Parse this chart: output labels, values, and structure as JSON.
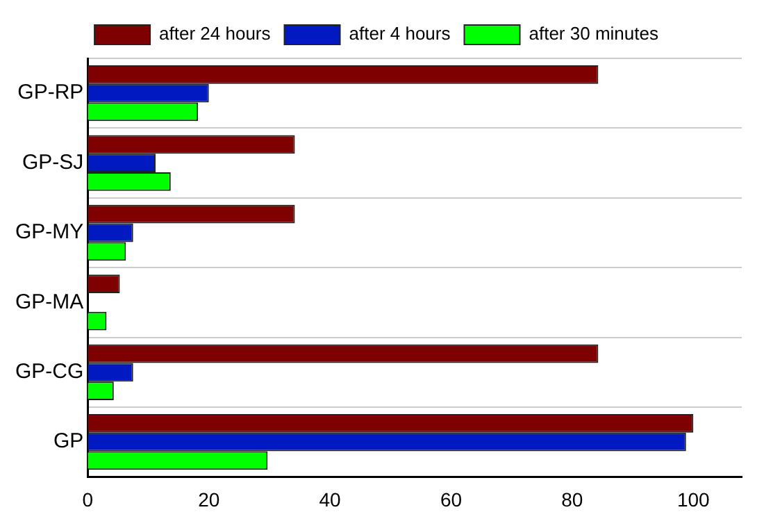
{
  "chart_data": {
    "type": "bar",
    "orientation": "horizontal",
    "categories": [
      "GP-RP",
      "GP-SJ",
      "GP-MY",
      "GP-MA",
      "GP-CG",
      "GP"
    ],
    "series": [
      {
        "name": "after 24 hours",
        "color": "#7f0000",
        "values": [
          84.3,
          34.2,
          34.2,
          5.3,
          84.3,
          100
        ]
      },
      {
        "name": "after 4 hours",
        "color": "#0019c0",
        "values": [
          20,
          11.2,
          7.5,
          0,
          7.5,
          98.8
        ]
      },
      {
        "name": "after 30 minutes",
        "color": "#00ff00",
        "values": [
          18.2,
          13.7,
          6.3,
          3.1,
          4.3,
          29.7
        ]
      }
    ],
    "xlim": [
      0,
      108
    ],
    "xticks": [
      0,
      20,
      40,
      60,
      80,
      100
    ],
    "grid": "y",
    "legend": "top"
  }
}
